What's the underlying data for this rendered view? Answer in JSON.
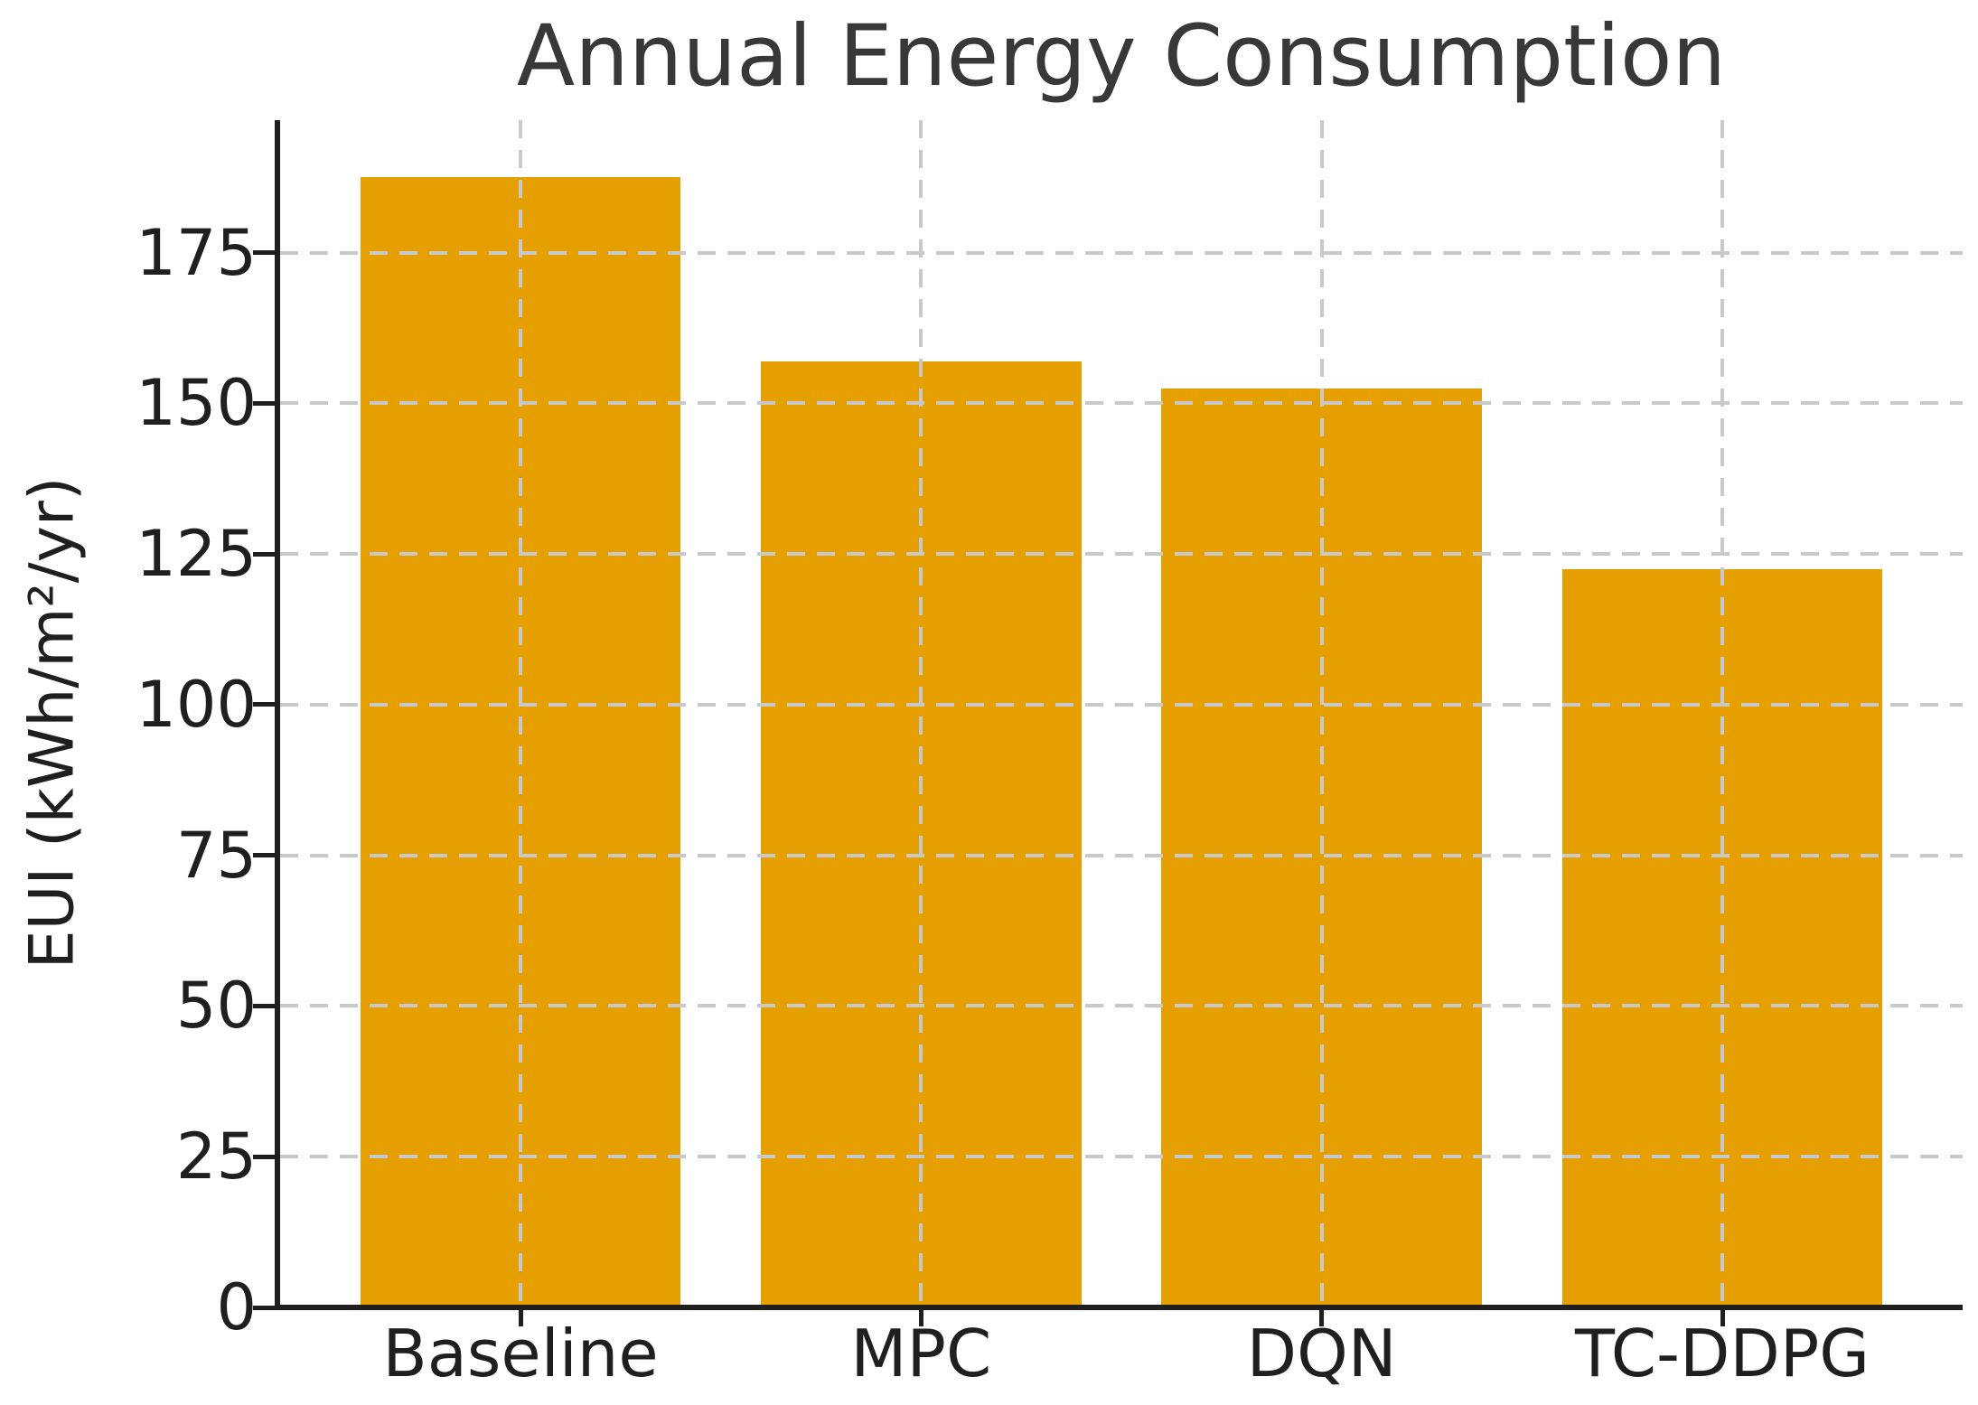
{
  "chart_data": {
    "type": "bar",
    "title": "Annual Energy Consumption",
    "xlabel": "",
    "ylabel": "EUI (kWh/m²/yr)",
    "categories": [
      "Baseline",
      "MPC",
      "DQN",
      "TC-DDPG"
    ],
    "values": [
      187.5,
      157,
      152.5,
      122.5
    ],
    "ylim": [
      0,
      197
    ],
    "yticks": [
      0,
      25,
      50,
      75,
      100,
      125,
      150,
      175
    ],
    "bar_width_fraction": 0.8,
    "grid": {
      "visible": true,
      "style": "dashed",
      "axes": "both",
      "above_bars": true
    },
    "legend_position": "none",
    "colors": {
      "bar": "#E69F00",
      "grid": "#c9c9c9",
      "spine": "#1f1f1f",
      "title": "#383838",
      "tick_label": "#1f1f1f",
      "background": "#ffffff"
    }
  }
}
